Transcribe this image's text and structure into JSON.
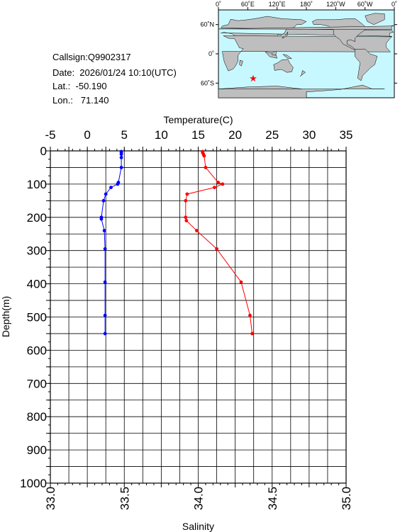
{
  "info": {
    "callsign": "Callsign:Q9902317",
    "date": "Date:  2026/01/24 10:10(UTC)",
    "lat": "Lat.:  -50.190",
    "lon": "Lon.:   71.140"
  },
  "map": {
    "lon_ticks": [
      "0˚",
      "60˚E",
      "120˚E",
      "180˚",
      "120˚W",
      "60˚W",
      "0˚"
    ],
    "lat_ticks": [
      "60˚N",
      "0˚",
      "60˚S"
    ],
    "marker": {
      "lat": -50.19,
      "lon": 71.14
    },
    "ocean_color": "#c8f8ff",
    "land_color": "#bebebe",
    "marker_color": "#ff0000",
    "marker_glyph": "★"
  },
  "chart_data": {
    "type": "line",
    "title": "",
    "xlabel_top": "Temperature(C)",
    "xlabel_bottom": "Salinity",
    "ylabel": "Depth(m)",
    "ylim": [
      0,
      1000
    ],
    "ylim_inverted": true,
    "temperature_xlim": [
      -5,
      35
    ],
    "salinity_xlim": [
      33.0,
      35.0
    ],
    "temperature_ticks": [
      "-5",
      "0",
      "5",
      "10",
      "15",
      "20",
      "25",
      "30",
      "35"
    ],
    "salinity_ticks": [
      "33.0",
      "33.5",
      "34.0",
      "34.5",
      "35.0"
    ],
    "depth_ticks": [
      "0",
      "100",
      "200",
      "300",
      "400",
      "500",
      "600",
      "700",
      "800",
      "900",
      "1000"
    ],
    "grid": true,
    "series": [
      {
        "axis": "temperature",
        "color": "#ff0000",
        "points": [
          {
            "depth": 2,
            "value": 15.6
          },
          {
            "depth": 5,
            "value": 15.6
          },
          {
            "depth": 10,
            "value": 15.7
          },
          {
            "depth": 15,
            "value": 15.8
          },
          {
            "depth": 50,
            "value": 16.0
          },
          {
            "depth": 95,
            "value": 17.7
          },
          {
            "depth": 100,
            "value": 18.3
          },
          {
            "depth": 110,
            "value": 17.2
          },
          {
            "depth": 130,
            "value": 13.5
          },
          {
            "depth": 150,
            "value": 13.3
          },
          {
            "depth": 200,
            "value": 13.3
          },
          {
            "depth": 210,
            "value": 13.4
          },
          {
            "depth": 240,
            "value": 14.8
          },
          {
            "depth": 295,
            "value": 17.5
          },
          {
            "depth": 395,
            "value": 20.8
          },
          {
            "depth": 495,
            "value": 22.0
          },
          {
            "depth": 550,
            "value": 22.3
          }
        ]
      },
      {
        "axis": "salinity",
        "color": "#0000ff",
        "points": [
          {
            "depth": 2,
            "value": 33.48
          },
          {
            "depth": 5,
            "value": 33.48
          },
          {
            "depth": 10,
            "value": 33.48
          },
          {
            "depth": 20,
            "value": 33.48
          },
          {
            "depth": 50,
            "value": 33.48
          },
          {
            "depth": 95,
            "value": 33.46
          },
          {
            "depth": 100,
            "value": 33.455
          },
          {
            "depth": 110,
            "value": 33.41
          },
          {
            "depth": 130,
            "value": 33.375
          },
          {
            "depth": 150,
            "value": 33.36
          },
          {
            "depth": 200,
            "value": 33.345
          },
          {
            "depth": 205,
            "value": 33.345
          },
          {
            "depth": 240,
            "value": 33.365
          },
          {
            "depth": 295,
            "value": 33.37
          },
          {
            "depth": 395,
            "value": 33.37
          },
          {
            "depth": 495,
            "value": 33.37
          },
          {
            "depth": 550,
            "value": 33.37
          }
        ]
      }
    ]
  }
}
